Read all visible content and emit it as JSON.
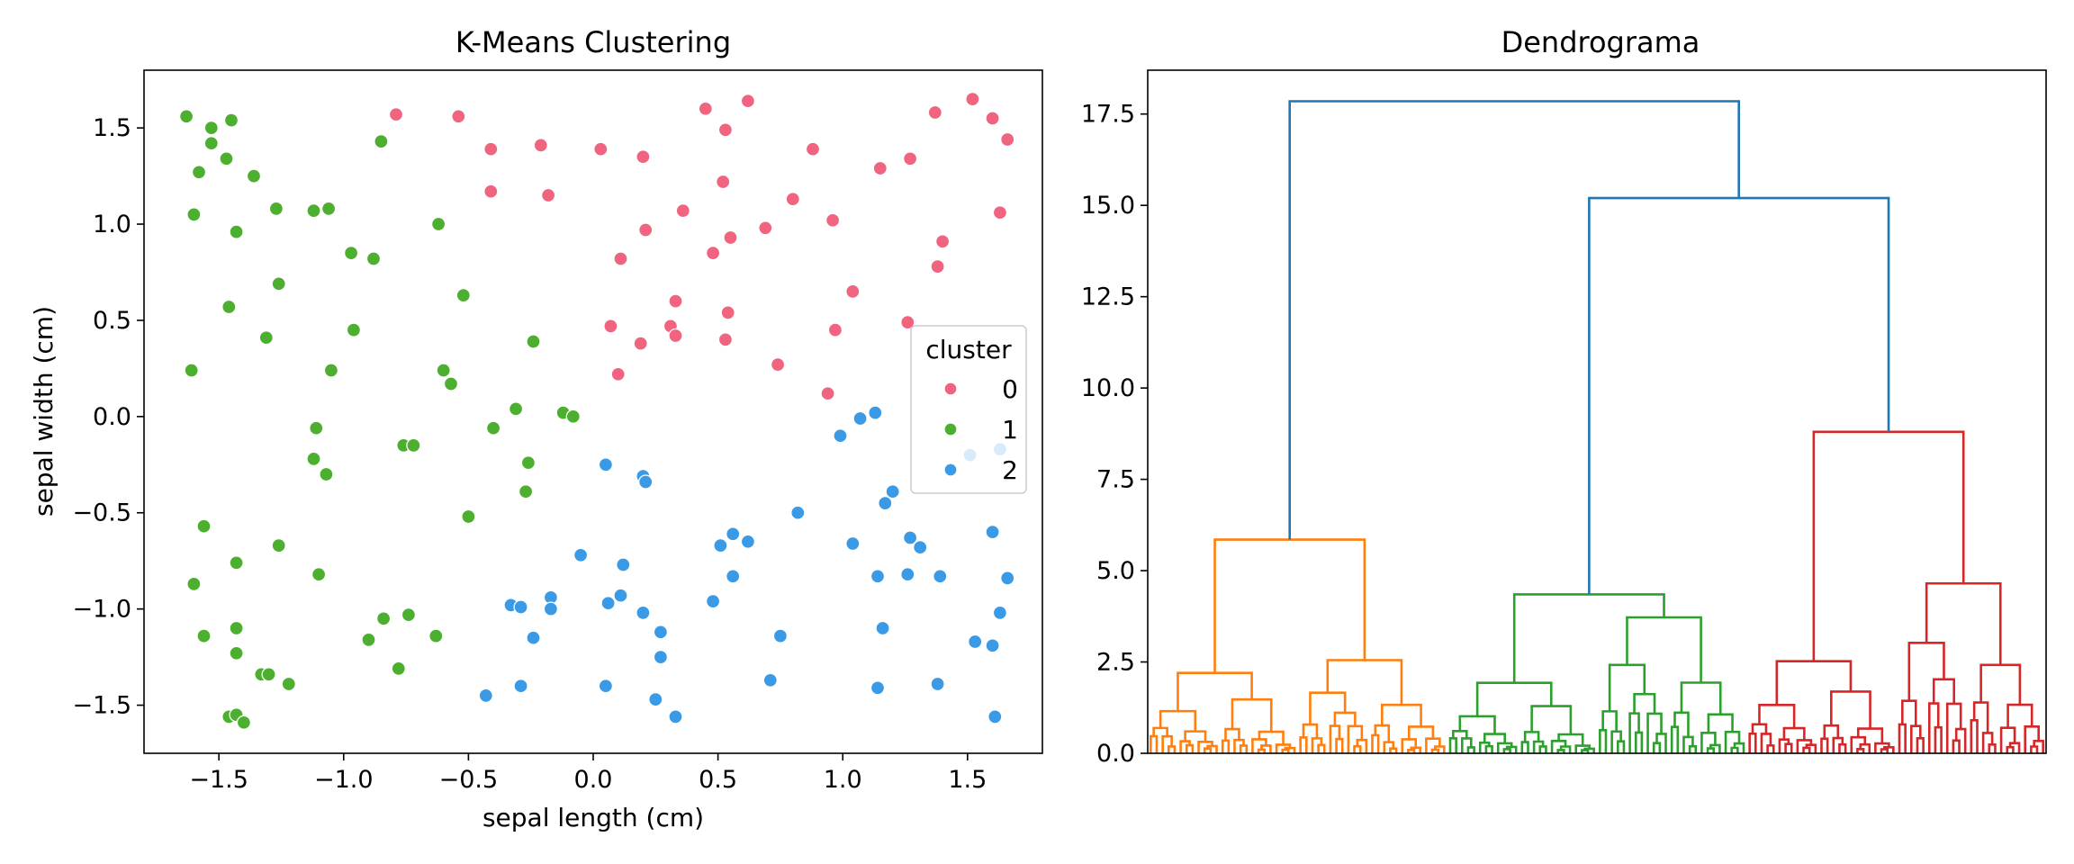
{
  "chart_data": [
    {
      "type": "scatter",
      "title": "K-Means Clustering",
      "xlabel": "sepal length (cm)",
      "ylabel": "sepal width (cm)",
      "xlim": [
        -1.8,
        1.8
      ],
      "ylim": [
        -1.75,
        1.8
      ],
      "xticks": [
        -1.5,
        -1.0,
        -0.5,
        0.0,
        0.5,
        1.0,
        1.5
      ],
      "xtick_labels": [
        "−1.5",
        "−1.0",
        "−0.5",
        "0.0",
        "0.5",
        "1.0",
        "1.5"
      ],
      "yticks": [
        -1.5,
        -1.0,
        -0.5,
        0.0,
        0.5,
        1.0,
        1.5
      ],
      "ytick_labels": [
        "−1.5",
        "−1.0",
        "−0.5",
        "0.0",
        "0.5",
        "1.0",
        "1.5"
      ],
      "grid": false,
      "legend": {
        "title": "cluster",
        "placement": "center-right"
      },
      "series": [
        {
          "name": "0",
          "color": "#f0647f",
          "points": [
            [
              -0.79,
              1.57
            ],
            [
              -0.54,
              1.56
            ],
            [
              -0.41,
              1.39
            ],
            [
              -0.41,
              1.17
            ],
            [
              -0.21,
              1.41
            ],
            [
              -0.18,
              1.15
            ],
            [
              0.03,
              1.39
            ],
            [
              0.2,
              1.35
            ],
            [
              0.45,
              1.6
            ],
            [
              0.53,
              1.49
            ],
            [
              0.62,
              1.64
            ],
            [
              0.88,
              1.39
            ],
            [
              1.27,
              1.34
            ],
            [
              1.15,
              1.29
            ],
            [
              1.52,
              1.65
            ],
            [
              1.6,
              1.55
            ],
            [
              1.66,
              1.44
            ],
            [
              1.63,
              1.06
            ],
            [
              1.37,
              1.58
            ],
            [
              0.52,
              1.22
            ],
            [
              0.36,
              1.07
            ],
            [
              0.21,
              0.97
            ],
            [
              0.11,
              0.82
            ],
            [
              0.48,
              0.85
            ],
            [
              0.55,
              0.93
            ],
            [
              0.69,
              0.98
            ],
            [
              0.8,
              1.13
            ],
            [
              0.96,
              1.02
            ],
            [
              1.4,
              0.91
            ],
            [
              1.38,
              0.78
            ],
            [
              1.04,
              0.65
            ],
            [
              1.26,
              0.49
            ],
            [
              0.97,
              0.45
            ],
            [
              0.33,
              0.6
            ],
            [
              0.07,
              0.47
            ],
            [
              0.31,
              0.47
            ],
            [
              0.33,
              0.42
            ],
            [
              0.19,
              0.38
            ],
            [
              0.53,
              0.4
            ],
            [
              0.54,
              0.54
            ],
            [
              0.74,
              0.27
            ],
            [
              0.1,
              0.22
            ],
            [
              0.94,
              0.12
            ]
          ]
        },
        {
          "name": "1",
          "color": "#4daf30",
          "points": [
            [
              -1.63,
              1.56
            ],
            [
              -1.53,
              1.5
            ],
            [
              -1.45,
              1.54
            ],
            [
              -1.53,
              1.42
            ],
            [
              -1.47,
              1.34
            ],
            [
              -1.58,
              1.27
            ],
            [
              -1.36,
              1.25
            ],
            [
              -1.6,
              1.05
            ],
            [
              -1.43,
              0.96
            ],
            [
              -1.27,
              1.08
            ],
            [
              -1.12,
              1.07
            ],
            [
              -1.06,
              1.08
            ],
            [
              -0.85,
              1.43
            ],
            [
              -0.97,
              0.85
            ],
            [
              -0.88,
              0.82
            ],
            [
              -0.62,
              1.0
            ],
            [
              -1.26,
              0.69
            ],
            [
              -1.46,
              0.57
            ],
            [
              -0.52,
              0.63
            ],
            [
              -0.96,
              0.45
            ],
            [
              -1.31,
              0.41
            ],
            [
              -0.24,
              0.39
            ],
            [
              -1.61,
              0.24
            ],
            [
              -1.05,
              0.24
            ],
            [
              -0.6,
              0.24
            ],
            [
              -0.57,
              0.17
            ],
            [
              -0.31,
              0.04
            ],
            [
              -0.12,
              0.02
            ],
            [
              -0.08,
              0.0
            ],
            [
              -1.11,
              -0.06
            ],
            [
              -0.4,
              -0.06
            ],
            [
              -0.76,
              -0.15
            ],
            [
              -0.72,
              -0.15
            ],
            [
              -1.12,
              -0.22
            ],
            [
              -0.26,
              -0.24
            ],
            [
              -1.07,
              -0.3
            ],
            [
              -0.27,
              -0.39
            ],
            [
              -0.5,
              -0.52
            ],
            [
              -1.56,
              -0.57
            ],
            [
              -1.26,
              -0.67
            ],
            [
              -1.43,
              -0.76
            ],
            [
              -1.1,
              -0.82
            ],
            [
              -1.6,
              -0.87
            ],
            [
              -0.74,
              -1.03
            ],
            [
              -0.84,
              -1.05
            ],
            [
              -1.43,
              -1.1
            ],
            [
              -0.63,
              -1.14
            ],
            [
              -0.9,
              -1.16
            ],
            [
              -1.56,
              -1.14
            ],
            [
              -1.43,
              -1.23
            ],
            [
              -0.78,
              -1.31
            ],
            [
              -1.33,
              -1.34
            ],
            [
              -1.3,
              -1.34
            ],
            [
              -1.22,
              -1.39
            ],
            [
              -1.46,
              -1.56
            ],
            [
              -1.43,
              -1.55
            ],
            [
              -1.4,
              -1.59
            ]
          ]
        },
        {
          "name": "2",
          "color": "#3a9ae6",
          "points": [
            [
              0.05,
              -0.25
            ],
            [
              0.2,
              -0.31
            ],
            [
              0.21,
              -0.34
            ],
            [
              0.99,
              -0.1
            ],
            [
              1.07,
              -0.01
            ],
            [
              1.13,
              0.02
            ],
            [
              1.51,
              -0.2
            ],
            [
              1.63,
              -0.17
            ],
            [
              1.2,
              -0.39
            ],
            [
              1.17,
              -0.45
            ],
            [
              0.82,
              -0.5
            ],
            [
              0.56,
              -0.61
            ],
            [
              0.62,
              -0.65
            ],
            [
              0.51,
              -0.67
            ],
            [
              1.04,
              -0.66
            ],
            [
              1.27,
              -0.63
            ],
            [
              1.31,
              -0.68
            ],
            [
              1.6,
              -0.6
            ],
            [
              -0.05,
              -0.72
            ],
            [
              0.12,
              -0.77
            ],
            [
              0.56,
              -0.83
            ],
            [
              1.14,
              -0.83
            ],
            [
              1.26,
              -0.82
            ],
            [
              1.39,
              -0.83
            ],
            [
              1.66,
              -0.84
            ],
            [
              0.11,
              -0.93
            ],
            [
              0.06,
              -0.97
            ],
            [
              -0.17,
              -0.94
            ],
            [
              -0.17,
              -1.0
            ],
            [
              -0.33,
              -0.98
            ],
            [
              -0.29,
              -0.99
            ],
            [
              0.48,
              -0.96
            ],
            [
              0.2,
              -1.02
            ],
            [
              1.63,
              -1.02
            ],
            [
              0.27,
              -1.12
            ],
            [
              -0.24,
              -1.15
            ],
            [
              0.75,
              -1.14
            ],
            [
              1.16,
              -1.1
            ],
            [
              1.53,
              -1.17
            ],
            [
              1.6,
              -1.19
            ],
            [
              0.27,
              -1.25
            ],
            [
              0.05,
              -1.4
            ],
            [
              0.71,
              -1.37
            ],
            [
              -0.29,
              -1.4
            ],
            [
              -0.43,
              -1.45
            ],
            [
              0.25,
              -1.47
            ],
            [
              0.33,
              -1.56
            ],
            [
              1.14,
              -1.41
            ],
            [
              1.38,
              -1.39
            ],
            [
              1.61,
              -1.56
            ]
          ]
        }
      ]
    },
    {
      "type": "dendrogram",
      "title": "Dendrograma",
      "ylim": [
        0,
        18.7
      ],
      "yticks": [
        0,
        2.5,
        5,
        7.5,
        10,
        12.5,
        15,
        17.5
      ],
      "ytick_labels": [
        "0.0",
        "2.5",
        "5.0",
        "7.5",
        "10.0",
        "12.5",
        "15.0",
        "17.5"
      ],
      "leaf_count": 150,
      "grid": false,
      "clusters": [
        {
          "name": "orange",
          "color": "#ff7f0e",
          "leaves": 50,
          "height": 5.85,
          "sub_heights": [
            2.2,
            2.55
          ]
        },
        {
          "name": "green",
          "color": "#2ca02c",
          "leaves": 50,
          "height": 4.35,
          "sub_heights": [
            1.93,
            3.72
          ]
        },
        {
          "name": "red",
          "color": "#d62728",
          "leaves": 50,
          "height": 8.8,
          "sub_heights": [
            2.52,
            4.65
          ]
        }
      ],
      "merges": [
        {
          "color": "#1f77b4",
          "height": 15.2,
          "joins": [
            "green",
            "red"
          ]
        },
        {
          "color": "#1f77b4",
          "height": 17.85,
          "joins": [
            "orange",
            "green+red"
          ]
        }
      ]
    }
  ]
}
